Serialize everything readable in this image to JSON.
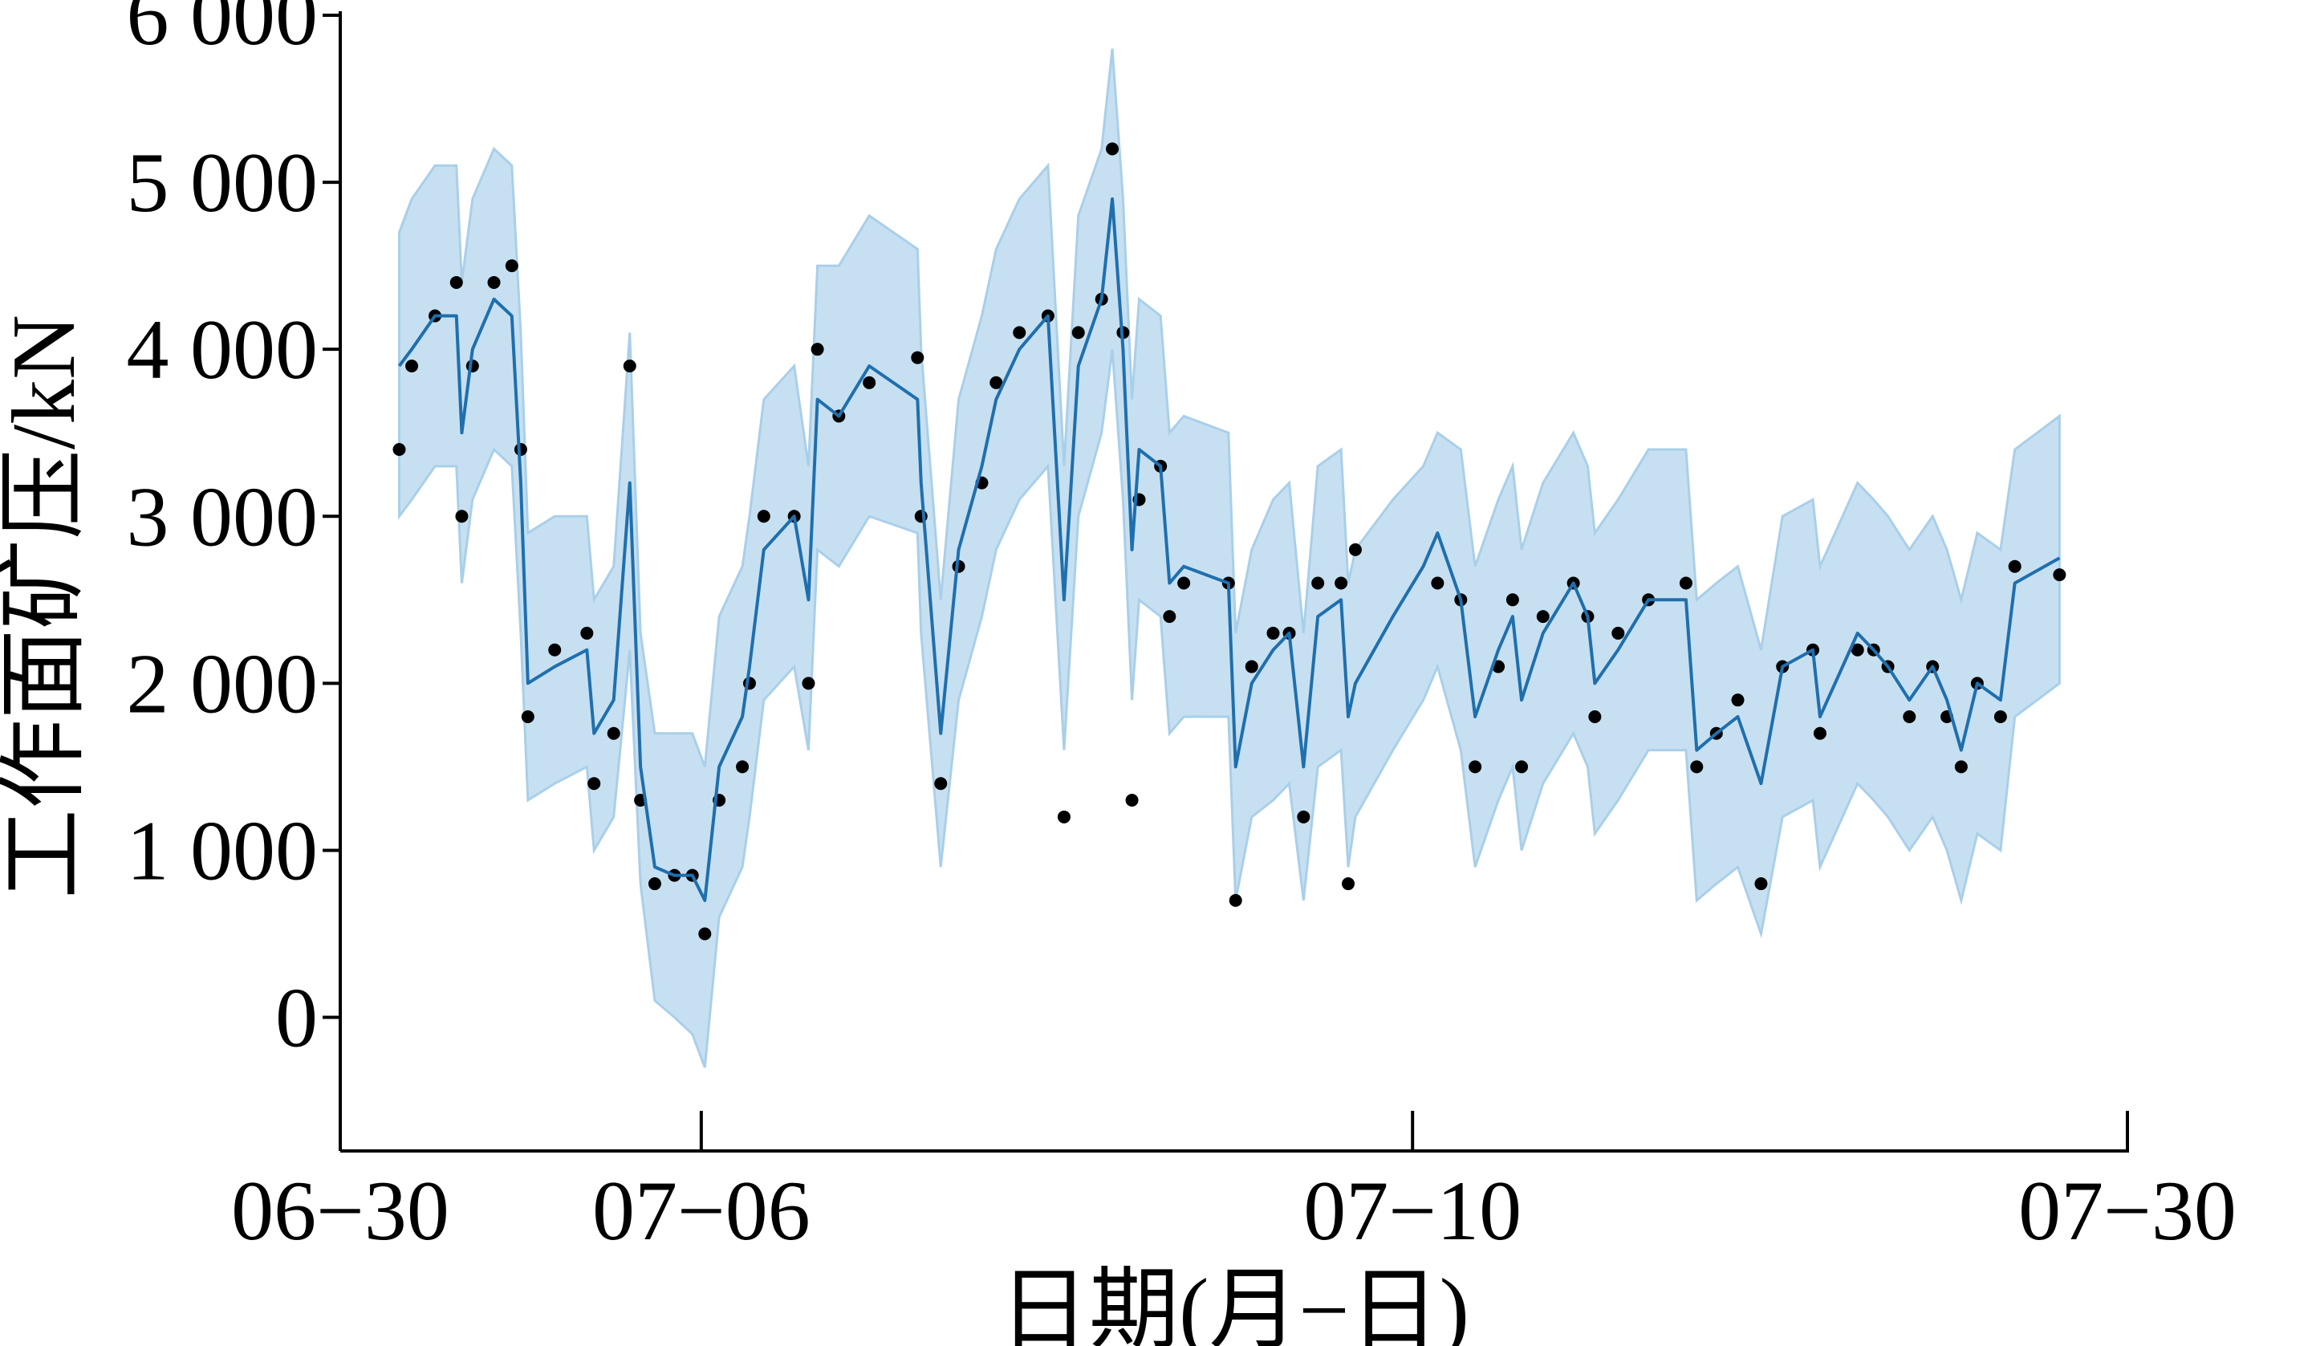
{
  "chart_data": {
    "type": "line",
    "x_label": "日期(月−日)",
    "y_label": "工作面矿压/kN",
    "xlim": [
      0,
      100
    ],
    "xticks": [
      {
        "value": 0,
        "label": "06−30"
      },
      {
        "value": 20.2,
        "label": "07−06"
      },
      {
        "value": 60,
        "label": "07−10"
      },
      {
        "value": 100,
        "label": "07−30"
      }
    ],
    "ylim": [
      -800,
      6000
    ],
    "yticks": [
      0,
      {
        "value": 1000,
        "label": "1 000"
      },
      {
        "value": 2000,
        "label": "2 000"
      },
      {
        "value": 3000,
        "label": "3 000"
      },
      {
        "value": 4000,
        "label": "4 000"
      },
      {
        "value": 5000,
        "label": "5 000"
      },
      {
        "value": 6000,
        "label": "6 000"
      }
    ],
    "x": [
      3.3,
      4.0,
      5.3,
      6.5,
      6.8,
      7.4,
      8.6,
      9.6,
      10.1,
      10.5,
      12.0,
      13.8,
      14.2,
      15.3,
      16.2,
      16.8,
      17.6,
      18.7,
      19.7,
      20.4,
      21.2,
      22.5,
      22.9,
      23.7,
      25.4,
      26.2,
      26.7,
      27.9,
      29.6,
      32.3,
      32.5,
      33.6,
      34.6,
      35.9,
      36.7,
      38.0,
      39.6,
      40.5,
      41.3,
      42.6,
      43.2,
      43.8,
      44.3,
      44.7,
      45.9,
      46.4,
      47.2,
      49.7,
      50.1,
      51.0,
      52.2,
      53.1,
      53.9,
      54.7,
      56.0,
      56.4,
      56.8,
      58.9,
      60.6,
      61.4,
      62.7,
      63.5,
      64.8,
      65.6,
      66.1,
      67.3,
      69.0,
      69.8,
      70.2,
      71.5,
      73.2,
      75.3,
      75.9,
      77.0,
      78.2,
      79.5,
      80.7,
      82.4,
      82.8,
      84.9,
      85.8,
      86.6,
      87.8,
      89.1,
      89.9,
      90.7,
      91.6,
      92.9,
      93.7,
      96.2
    ],
    "band": {
      "color": "#a9cfe9",
      "lower": [
        3000,
        3100,
        3300,
        3300,
        2600,
        3100,
        3400,
        3300,
        2300,
        1300,
        1400,
        1500,
        1000,
        1200,
        2200,
        800,
        100,
        0,
        -100,
        -300,
        600,
        900,
        1200,
        1900,
        2100,
        1600,
        2800,
        2700,
        3000,
        2900,
        2300,
        900,
        1900,
        2400,
        2800,
        3100,
        3300,
        1600,
        3000,
        3500,
        4000,
        3100,
        1900,
        2500,
        2400,
        1700,
        1800,
        1800,
        700,
        1200,
        1300,
        1400,
        700,
        1500,
        1600,
        900,
        1200,
        1600,
        1900,
        2100,
        1600,
        900,
        1300,
        1500,
        1000,
        1400,
        1700,
        1500,
        1100,
        1300,
        1600,
        1600,
        700,
        800,
        900,
        500,
        1200,
        1300,
        900,
        1400,
        1300,
        1200,
        1000,
        1200,
        1000,
        700,
        1100,
        1000,
        1800,
        2000
      ],
      "upper": [
        4700,
        4900,
        5100,
        5100,
        4400,
        4900,
        5200,
        5100,
        4100,
        2900,
        3000,
        3000,
        2500,
        2700,
        4100,
        2300,
        1700,
        1700,
        1700,
        1500,
        2400,
        2700,
        3000,
        3700,
        3900,
        3300,
        4500,
        4500,
        4800,
        4600,
        4000,
        2500,
        3700,
        4200,
        4600,
        4900,
        5100,
        3300,
        4800,
        5200,
        5800,
        4900,
        3700,
        4300,
        4200,
        3500,
        3600,
        3500,
        2300,
        2800,
        3100,
        3200,
        2300,
        3300,
        3400,
        2600,
        2800,
        3100,
        3300,
        3500,
        3400,
        2700,
        3100,
        3300,
        2800,
        3200,
        3500,
        3300,
        2900,
        3100,
        3400,
        3400,
        2500,
        2600,
        2700,
        2200,
        3000,
        3100,
        2700,
        3200,
        3100,
        3000,
        2800,
        3000,
        2800,
        2500,
        2900,
        2800,
        3400,
        3600
      ]
    },
    "series": [
      {
        "style": "scatter",
        "color": "#000000",
        "values": [
          3400,
          3900,
          4200,
          4400,
          3000,
          3900,
          4400,
          4500,
          3400,
          1800,
          2200,
          2300,
          1400,
          1700,
          3900,
          1300,
          800,
          850,
          850,
          500,
          1300,
          1500,
          2000,
          3000,
          3000,
          2000,
          4000,
          3600,
          3800,
          3950,
          3000,
          1400,
          2700,
          3200,
          3800,
          4100,
          4200,
          1200,
          4100,
          4300,
          5200,
          4100,
          1300,
          3100,
          3300,
          2400,
          2600,
          2600,
          700,
          2100,
          2300,
          2300,
          1200,
          2600,
          2600,
          800,
          2800,
          null,
          null,
          2600,
          2500,
          1500,
          2100,
          2500,
          1500,
          2400,
          2600,
          2400,
          1800,
          2300,
          2500,
          2600,
          1500,
          1700,
          1900,
          800,
          2100,
          2200,
          1700,
          2200,
          2200,
          2100,
          1800,
          2100,
          1800,
          1500,
          2000,
          1800,
          2700,
          2650
        ]
      },
      {
        "style": "line",
        "color": "#1f6fae",
        "values": [
          3900,
          4000,
          4200,
          4200,
          3500,
          4000,
          4300,
          4200,
          3200,
          2000,
          2100,
          2200,
          1700,
          1900,
          3200,
          1500,
          900,
          850,
          850,
          700,
          1500,
          1800,
          2100,
          2800,
          3000,
          2500,
          3700,
          3600,
          3900,
          3700,
          3200,
          1700,
          2800,
          3300,
          3700,
          4000,
          4200,
          2500,
          3900,
          4300,
          4900,
          4000,
          2800,
          3400,
          3300,
          2600,
          2700,
          2600,
          1500,
          2000,
          2200,
          2300,
          1500,
          2400,
          2500,
          1800,
          2000,
          2400,
          2700,
          2900,
          2500,
          1800,
          2200,
          2400,
          1900,
          2300,
          2600,
          2400,
          2000,
          2200,
          2500,
          2500,
          1600,
          1700,
          1800,
          1400,
          2100,
          2200,
          1800,
          2300,
          2200,
          2100,
          1900,
          2100,
          1900,
          1600,
          2000,
          1900,
          2600,
          2750
        ]
      }
    ]
  }
}
